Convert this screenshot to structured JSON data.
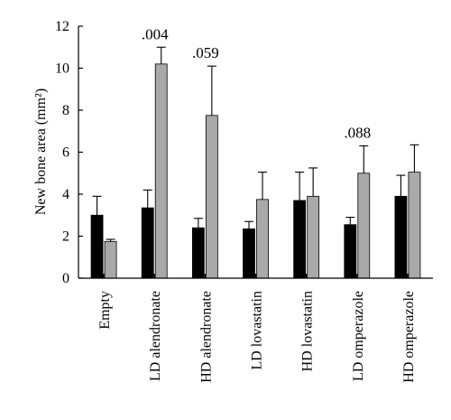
{
  "chart_data": {
    "type": "bar",
    "ylabel": "New bone area (mm²)",
    "ylim": [
      0,
      12
    ],
    "yticks": [
      0,
      2,
      4,
      6,
      8,
      10,
      12
    ],
    "categories": [
      "Empty",
      "LD alendronate",
      "HD alendronate",
      "LD lovastatin",
      "HD lovastatin",
      "LD omperazole",
      "HD omperazole"
    ],
    "series": [
      {
        "color": "#000000",
        "values": [
          3.0,
          3.35,
          2.4,
          2.35,
          3.7,
          2.55,
          3.9
        ],
        "errors": [
          0.9,
          0.85,
          0.45,
          0.35,
          1.35,
          0.35,
          1.0
        ]
      },
      {
        "color": "#a9a9a9",
        "values": [
          1.75,
          10.2,
          7.75,
          3.75,
          3.9,
          5.0,
          5.05
        ],
        "errors": [
          0.1,
          0.8,
          2.35,
          1.3,
          1.35,
          1.3,
          1.3
        ]
      }
    ],
    "annotations": [
      {
        "category_index": 1,
        "series_index": 1,
        "text": ".004"
      },
      {
        "category_index": 2,
        "series_index": 1,
        "text": ".059"
      },
      {
        "category_index": 5,
        "series_index": 1,
        "text": ".088"
      }
    ],
    "grid": false,
    "legend": "none"
  }
}
